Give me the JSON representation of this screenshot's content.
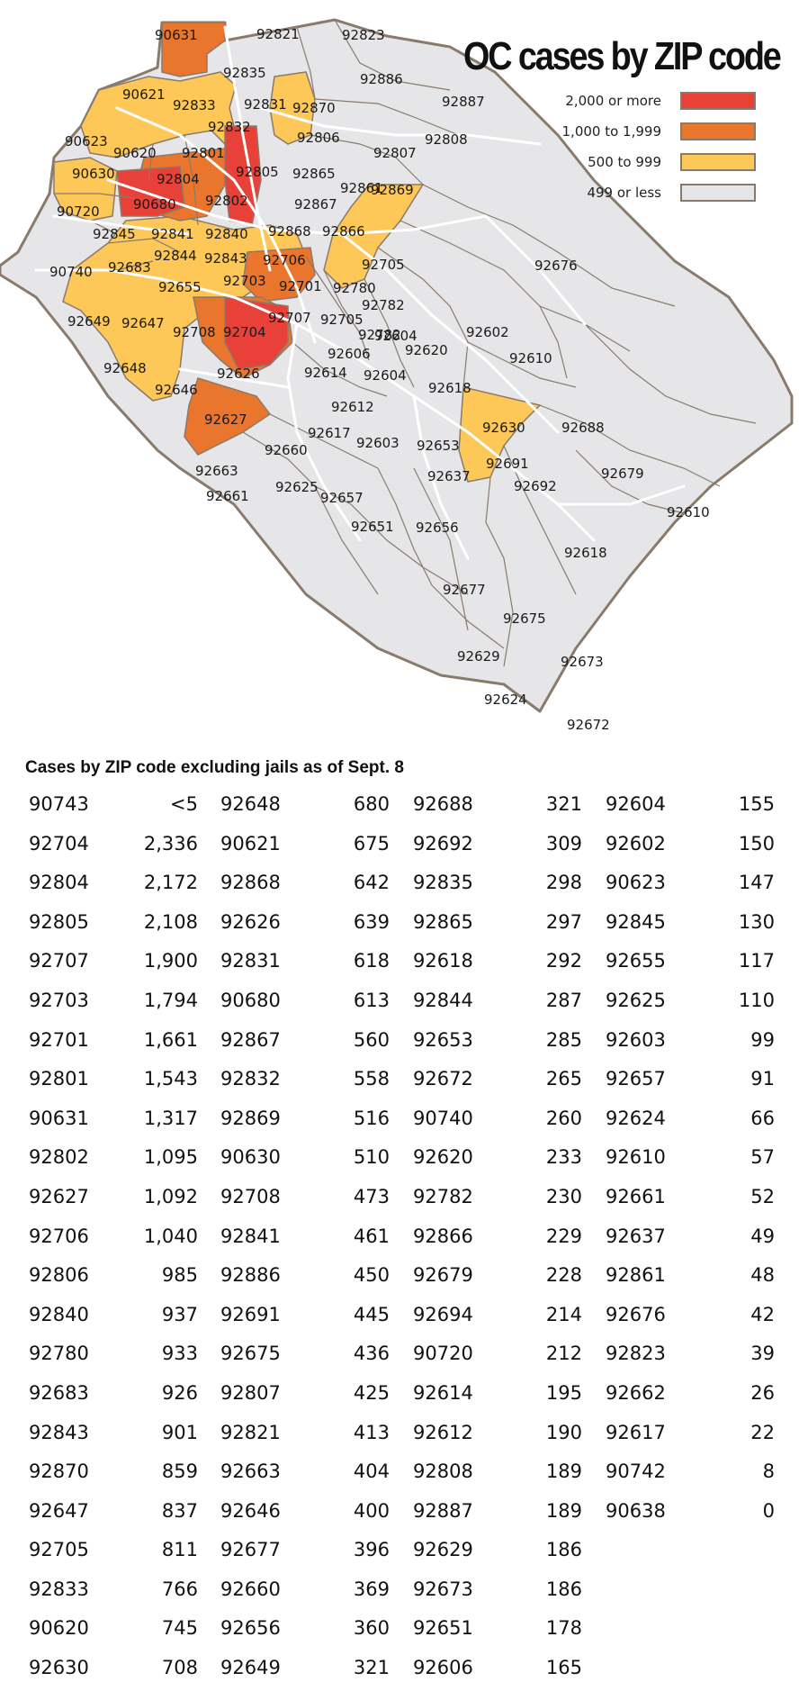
{
  "map": {
    "title": "OC cases by ZIP code",
    "legend": [
      {
        "label": "2,000 or more",
        "color": "#e8413a"
      },
      {
        "label": "1,000 to 1,999",
        "color": "#ea752c"
      },
      {
        "label": "500 to 999",
        "color": "#fdc858"
      },
      {
        "label": "499 or less",
        "color": "#e6e6e8"
      }
    ],
    "border_color": "#8a7a6c",
    "road_color": "#ffffff",
    "zip_labels": [
      "90631",
      "92821",
      "92823",
      "92835",
      "92886",
      "90621",
      "92833",
      "92831",
      "92870",
      "92887",
      "92832",
      "92806",
      "92808",
      "90623",
      "92801",
      "90620",
      "92805",
      "92807",
      "90630",
      "92865",
      "92804",
      "92861",
      "92802",
      "90680",
      "92867",
      "90720",
      "92845",
      "92841",
      "92840",
      "92868",
      "92866",
      "92869",
      "92844",
      "92843",
      "92706",
      "92705",
      "92676",
      "90740",
      "92683",
      "92655",
      "92703",
      "92701",
      "92780",
      "92782",
      "92649",
      "92647",
      "92708",
      "92704",
      "92707",
      "92705",
      "92782",
      "92604",
      "92602",
      "92606",
      "92620",
      "92610",
      "92648",
      "92646",
      "92626",
      "92614",
      "92604",
      "92618",
      "92612",
      "92630",
      "92688",
      "92627",
      "92617",
      "92660",
      "92603",
      "92653",
      "92691",
      "92637",
      "92679",
      "92663",
      "92692",
      "92661",
      "92625",
      "92657",
      "92610",
      "92651",
      "92656",
      "92618",
      "92677",
      "92675",
      "92629",
      "92673",
      "92624",
      "92672"
    ]
  },
  "table": {
    "title": "Cases by ZIP code excluding jails as of Sept. 8",
    "columns": [
      [
        {
          "zip": "90743",
          "cases": "<5"
        },
        {
          "zip": "92704",
          "cases": "2,336"
        },
        {
          "zip": "92804",
          "cases": "2,172"
        },
        {
          "zip": "92805",
          "cases": "2,108"
        },
        {
          "zip": "92707",
          "cases": "1,900"
        },
        {
          "zip": "92703",
          "cases": "1,794"
        },
        {
          "zip": "92701",
          "cases": "1,661"
        },
        {
          "zip": "92801",
          "cases": "1,543"
        },
        {
          "zip": "90631",
          "cases": "1,317"
        },
        {
          "zip": "92802",
          "cases": "1,095"
        },
        {
          "zip": "92627",
          "cases": "1,092"
        },
        {
          "zip": "92706",
          "cases": "1,040"
        },
        {
          "zip": "92806",
          "cases": "985"
        },
        {
          "zip": "92840",
          "cases": "937"
        },
        {
          "zip": "92780",
          "cases": "933"
        },
        {
          "zip": "92683",
          "cases": "926"
        },
        {
          "zip": "92843",
          "cases": "901"
        },
        {
          "zip": "92870",
          "cases": "859"
        },
        {
          "zip": "92647",
          "cases": "837"
        },
        {
          "zip": "92705",
          "cases": "811"
        },
        {
          "zip": "92833",
          "cases": "766"
        },
        {
          "zip": "90620",
          "cases": "745"
        },
        {
          "zip": "92630",
          "cases": "708"
        }
      ],
      [
        {
          "zip": "92648",
          "cases": "680"
        },
        {
          "zip": "90621",
          "cases": "675"
        },
        {
          "zip": "92868",
          "cases": "642"
        },
        {
          "zip": "92626",
          "cases": "639"
        },
        {
          "zip": "92831",
          "cases": "618"
        },
        {
          "zip": "90680",
          "cases": "613"
        },
        {
          "zip": "92867",
          "cases": "560"
        },
        {
          "zip": "92832",
          "cases": "558"
        },
        {
          "zip": "92869",
          "cases": "516"
        },
        {
          "zip": "90630",
          "cases": "510"
        },
        {
          "zip": "92708",
          "cases": "473"
        },
        {
          "zip": "92841",
          "cases": "461"
        },
        {
          "zip": "92886",
          "cases": "450"
        },
        {
          "zip": "92691",
          "cases": "445"
        },
        {
          "zip": "92675",
          "cases": "436"
        },
        {
          "zip": "92807",
          "cases": "425"
        },
        {
          "zip": "92821",
          "cases": "413"
        },
        {
          "zip": "92663",
          "cases": "404"
        },
        {
          "zip": "92646",
          "cases": "400"
        },
        {
          "zip": "92677",
          "cases": "396"
        },
        {
          "zip": "92660",
          "cases": "369"
        },
        {
          "zip": "92656",
          "cases": "360"
        },
        {
          "zip": "92649",
          "cases": "321"
        }
      ],
      [
        {
          "zip": "92688",
          "cases": "321"
        },
        {
          "zip": "92692",
          "cases": "309"
        },
        {
          "zip": "92835",
          "cases": "298"
        },
        {
          "zip": "92865",
          "cases": "297"
        },
        {
          "zip": "92618",
          "cases": "292"
        },
        {
          "zip": "92844",
          "cases": "287"
        },
        {
          "zip": "92653",
          "cases": "285"
        },
        {
          "zip": "92672",
          "cases": "265"
        },
        {
          "zip": "90740",
          "cases": "260"
        },
        {
          "zip": "92620",
          "cases": "233"
        },
        {
          "zip": "92782",
          "cases": "230"
        },
        {
          "zip": "92866",
          "cases": "229"
        },
        {
          "zip": "92679",
          "cases": "228"
        },
        {
          "zip": "92694",
          "cases": "214"
        },
        {
          "zip": "90720",
          "cases": "212"
        },
        {
          "zip": "92614",
          "cases": "195"
        },
        {
          "zip": "92612",
          "cases": "190"
        },
        {
          "zip": "92808",
          "cases": "189"
        },
        {
          "zip": "92887",
          "cases": "189"
        },
        {
          "zip": "92629",
          "cases": "186"
        },
        {
          "zip": "92673",
          "cases": "186"
        },
        {
          "zip": "92651",
          "cases": "178"
        },
        {
          "zip": "92606",
          "cases": "165"
        }
      ],
      [
        {
          "zip": "92604",
          "cases": "155"
        },
        {
          "zip": "92602",
          "cases": "150"
        },
        {
          "zip": "90623",
          "cases": "147"
        },
        {
          "zip": "92845",
          "cases": "130"
        },
        {
          "zip": "92655",
          "cases": "117"
        },
        {
          "zip": "92625",
          "cases": "110"
        },
        {
          "zip": "92603",
          "cases": "99"
        },
        {
          "zip": "92657",
          "cases": "91"
        },
        {
          "zip": "92624",
          "cases": "66"
        },
        {
          "zip": "92610",
          "cases": "57"
        },
        {
          "zip": "92661",
          "cases": "52"
        },
        {
          "zip": "92637",
          "cases": "49"
        },
        {
          "zip": "92861",
          "cases": "48"
        },
        {
          "zip": "92676",
          "cases": "42"
        },
        {
          "zip": "92823",
          "cases": "39"
        },
        {
          "zip": "92662",
          "cases": "26"
        },
        {
          "zip": "92617",
          "cases": "22"
        },
        {
          "zip": "90742",
          "cases": "8"
        },
        {
          "zip": "90638",
          "cases": "0"
        }
      ]
    ]
  }
}
